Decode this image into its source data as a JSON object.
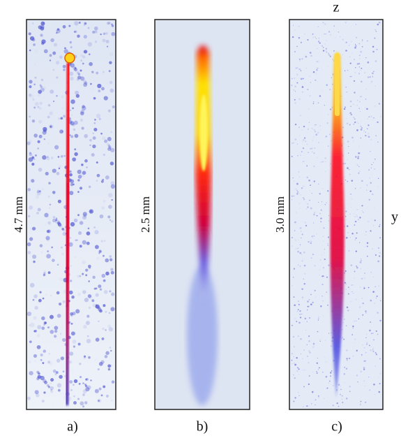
{
  "axes": {
    "top": "z",
    "right": "y"
  },
  "panels": [
    {
      "scale_label": "4.7 mm",
      "caption": "a)"
    },
    {
      "scale_label": "2.5 mm",
      "caption": "b)"
    },
    {
      "scale_label": "3.0 mm",
      "caption": "c)"
    }
  ]
}
